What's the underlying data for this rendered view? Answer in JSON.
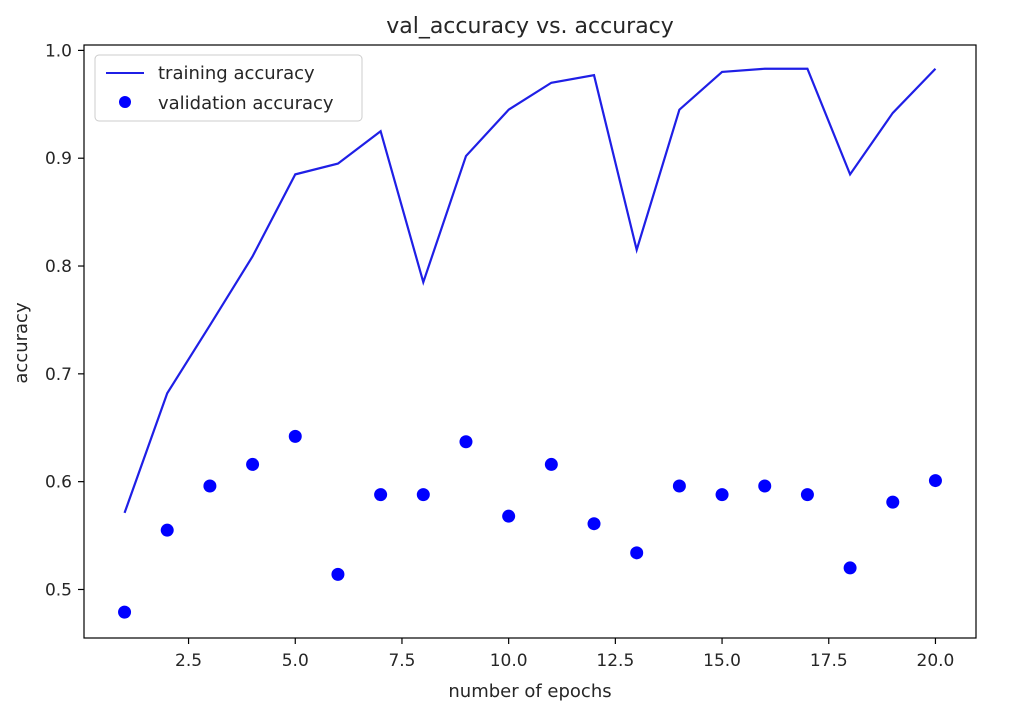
{
  "chart_data": {
    "type": "line",
    "title": "val_accuracy vs. accuracy",
    "xlabel": "number of epochs",
    "ylabel": "accuracy",
    "xlim": [
      0.05,
      20.95
    ],
    "ylim": [
      0.455,
      1.005
    ],
    "xticks": [
      2.5,
      5.0,
      7.5,
      10.0,
      12.5,
      15.0,
      17.5,
      20.0
    ],
    "xtick_labels": [
      "2.5",
      "5.0",
      "7.5",
      "10.0",
      "12.5",
      "15.0",
      "17.5",
      "20.0"
    ],
    "yticks": [
      0.5,
      0.6,
      0.7,
      0.8,
      0.9,
      1.0
    ],
    "ytick_labels": [
      "0.5",
      "0.6",
      "0.7",
      "0.8",
      "0.9",
      "1.0"
    ],
    "grid": false,
    "legend_position": "top-left",
    "x": [
      1,
      2,
      3,
      4,
      5,
      6,
      7,
      8,
      9,
      10,
      11,
      12,
      13,
      14,
      15,
      16,
      17,
      18,
      19,
      20
    ],
    "series": [
      {
        "name": "training accuracy",
        "style": "line",
        "color": "#1f1fe6",
        "values": [
          0.571,
          0.682,
          0.745,
          0.809,
          0.885,
          0.895,
          0.925,
          0.785,
          0.902,
          0.945,
          0.97,
          0.977,
          0.815,
          0.945,
          0.98,
          0.983,
          0.983,
          0.885,
          0.942,
          0.983
        ]
      },
      {
        "name": "validation accuracy",
        "style": "scatter",
        "color": "#0000ff",
        "values": [
          0.479,
          0.555,
          0.596,
          0.616,
          0.642,
          0.514,
          0.588,
          0.588,
          0.637,
          0.568,
          0.616,
          0.561,
          0.534,
          0.596,
          0.588,
          0.596,
          0.588,
          0.52,
          0.581,
          0.601
        ]
      }
    ]
  }
}
